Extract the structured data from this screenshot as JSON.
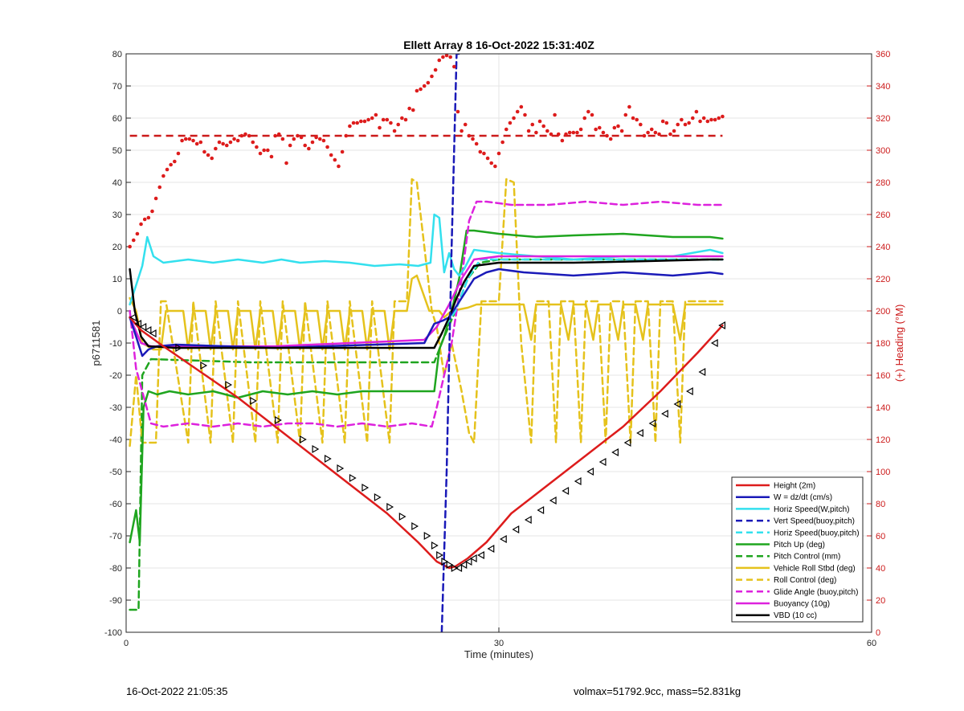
{
  "footer": {
    "timestamp": "16-Oct-2022 21:05:35",
    "volmax_mass": "volmax=51792.9cc, mass=52.831kg"
  },
  "chart_data": {
    "type": "line",
    "title": "Ellett Array 8 16-Oct-2022 15:31:40Z",
    "xlabel": "Time (minutes)",
    "ylabel": "p6711581",
    "y2label": "(+) Heading (°M)",
    "xlim": [
      0,
      60
    ],
    "ylim": [
      -100,
      80
    ],
    "y2lim": [
      0,
      360
    ],
    "xticks": [
      0,
      30,
      60
    ],
    "yticks": [
      -100,
      -90,
      -80,
      -70,
      -60,
      -50,
      -40,
      -30,
      -20,
      -10,
      0,
      10,
      20,
      30,
      40,
      50,
      60,
      70,
      80
    ],
    "y2ticks": [
      0,
      20,
      40,
      60,
      80,
      100,
      120,
      140,
      160,
      180,
      200,
      220,
      240,
      260,
      280,
      300,
      320,
      340,
      360
    ],
    "grid": true,
    "legend_position": "bottom-right",
    "y2_color": "#cc1a1a",
    "series": [
      {
        "name": "Height (2m)",
        "color": "#dd1c1c",
        "style": "solid",
        "width": 2.5,
        "x": [
          0.3,
          1.2,
          3,
          6,
          9,
          12,
          15,
          18,
          21,
          23.5,
          25,
          26,
          26.5,
          27.5,
          29,
          31,
          34,
          37,
          40,
          43,
          46,
          48
        ],
        "y": [
          -2,
          -6,
          -11,
          -19,
          -27,
          -36,
          -45,
          -54,
          -63,
          -72,
          -78,
          -80,
          -79.5,
          -77,
          -72,
          -63,
          -54,
          -45,
          -36,
          -25,
          -13,
          -4.5
        ]
      },
      {
        "name": "W = dz/dt (cm/s)",
        "color": "#1a1ab8",
        "style": "solid",
        "width": 2.5,
        "x": [
          0.3,
          0.8,
          1.3,
          1.8,
          2.5,
          4,
          8,
          12,
          16,
          20,
          24,
          24.8,
          25.5,
          26,
          27,
          28,
          29,
          30,
          32,
          36,
          40,
          44,
          47,
          48
        ],
        "y": [
          -2,
          -8,
          -14,
          -12,
          -11,
          -10.5,
          -11,
          -11.5,
          -11,
          -10.5,
          -10,
          -4,
          -3,
          -2,
          4,
          10,
          12,
          13,
          12,
          11,
          12,
          11,
          12,
          11.5
        ]
      },
      {
        "name": "Horiz Speed(W,pitch)",
        "color": "#33e0ee",
        "style": "solid",
        "width": 2.5,
        "x": [
          0.3,
          0.8,
          1.3,
          1.7,
          2.2,
          3,
          5,
          7,
          9,
          11,
          12.5,
          14,
          16,
          18,
          20,
          22,
          23.5,
          24.5,
          24.8,
          25.2,
          25.6,
          26,
          26.4,
          26.8,
          27.2,
          28,
          30,
          33,
          36,
          40,
          44,
          47,
          48
        ],
        "y": [
          2,
          8,
          14,
          23,
          17,
          15,
          16,
          15,
          16,
          15,
          16,
          15,
          15.5,
          15,
          14,
          14.5,
          14,
          15,
          30,
          29,
          12,
          18,
          13,
          11,
          13,
          19,
          18,
          17,
          16,
          17,
          17,
          19,
          18
        ]
      },
      {
        "name": "Vert Speed(buoy,pitch)",
        "color": "#1a1ab8",
        "style": "dashed",
        "width": 2.5,
        "x": [
          25.4,
          25.8,
          26.2,
          26.6,
          27.0
        ],
        "y": [
          -100,
          -50,
          20,
          80,
          80
        ]
      },
      {
        "name": "Horiz Speed(buoy,pitch)",
        "color": "#33e0ee",
        "style": "dashed",
        "width": 2.5,
        "x": [
          25.8,
          26.5,
          27.5,
          28.5,
          30,
          33,
          36,
          40,
          44,
          48
        ],
        "y": [
          -4,
          0,
          10,
          16,
          16,
          16,
          16,
          16,
          16,
          16
        ]
      },
      {
        "name": "Pitch Up (deg)",
        "color": "#1fa51f",
        "style": "solid",
        "width": 2.5,
        "x": [
          0.3,
          0.8,
          1.1,
          1.4,
          1.8,
          2.5,
          3.5,
          5,
          7,
          9,
          11,
          13,
          15,
          17,
          19,
          21,
          23,
          24.8,
          25.2,
          25.6,
          26.2,
          26.8,
          27.4,
          28,
          30,
          33,
          36,
          40,
          44,
          47,
          48
        ],
        "y": [
          -72,
          -62,
          -72,
          -30,
          -25,
          -26,
          -25,
          -26,
          -25,
          -27,
          -25,
          -26,
          -25,
          -26,
          -25,
          -25,
          -25,
          -25,
          -12,
          -8,
          0,
          10,
          25,
          25,
          24,
          23,
          23.5,
          24,
          23,
          23,
          22.5
        ]
      },
      {
        "name": "Pitch Control (mm)",
        "color": "#1fa51f",
        "style": "dashed",
        "width": 2.5,
        "x": [
          0.3,
          1.0,
          1.3,
          2.0,
          10,
          18,
          24.8,
          25.5,
          26.5,
          27.5,
          28.5,
          30,
          36,
          42,
          48
        ],
        "y": [
          -93,
          -93,
          -20,
          -15,
          -16,
          -16,
          -16,
          -9,
          0,
          10,
          15,
          16,
          16,
          16,
          16
        ]
      },
      {
        "name": "Vehicle Roll Stbd (deg)",
        "color": "#e5c21c",
        "style": "solid",
        "width": 2.5,
        "x": [
          0.3,
          0.8,
          1.3,
          2.2,
          2.8,
          3.2,
          3.6,
          4.6,
          5.0,
          5.4,
          6.4,
          6.8,
          7.2,
          8.2,
          8.6,
          9.0,
          10.0,
          10.4,
          10.8,
          11.8,
          12.2,
          12.6,
          13.6,
          14.0,
          14.4,
          15.4,
          15.8,
          16.2,
          17.2,
          17.6,
          18.0,
          19.0,
          19.4,
          19.8,
          20.8,
          21.2,
          21.6,
          22.6,
          23.0,
          23.4,
          24.4,
          24.8,
          25.2,
          25.6,
          26.2,
          27.5,
          28.2,
          29,
          31,
          32,
          32.6,
          33,
          35,
          35.6,
          36,
          37,
          37.6,
          38,
          39,
          39.6,
          40,
          41,
          41.6,
          42,
          43,
          44,
          44.6,
          45,
          47,
          48
        ],
        "y": [
          4,
          0,
          -10,
          -12,
          -12,
          0,
          0,
          0,
          -12,
          0,
          0,
          -12,
          0,
          0,
          -12,
          0,
          0,
          -12,
          0,
          0,
          -12,
          0,
          0,
          -12,
          0,
          0,
          -12,
          0,
          0,
          -12,
          0,
          0,
          -12,
          0,
          0,
          -12,
          0,
          0,
          10,
          11,
          0,
          0,
          0,
          -2,
          0,
          1,
          2,
          2,
          2,
          2,
          -9,
          2,
          2,
          -9,
          2,
          2,
          -9,
          2,
          2,
          -9,
          2,
          2,
          -9,
          2,
          2,
          2,
          -9,
          2,
          2,
          2
        ]
      },
      {
        "name": "Roll Control (deg)",
        "color": "#e5c21c",
        "style": "dashed",
        "width": 2.5,
        "x": [
          0.3,
          0.8,
          1.3,
          2.4,
          2.8,
          3.2,
          5.0,
          5.4,
          6.8,
          7.2,
          8.6,
          9.0,
          10.4,
          10.8,
          12.2,
          12.6,
          14.0,
          14.4,
          15.8,
          16.2,
          17.6,
          18.0,
          19.4,
          19.8,
          21.2,
          21.6,
          22.6,
          23.0,
          23.4,
          24.6,
          25.0,
          25.6,
          26.2,
          27.0,
          27.6,
          28.0,
          28.6,
          30,
          30.6,
          31.2,
          31.8,
          32.6,
          33,
          34,
          34.6,
          35,
          36,
          36.6,
          37,
          38,
          38.6,
          39,
          40,
          40.6,
          41,
          42,
          42.6,
          43,
          44,
          44.6,
          45,
          46,
          47,
          48
        ],
        "y": [
          -42,
          -20,
          -41,
          -41,
          3,
          3,
          -41,
          3,
          -41,
          3,
          -41,
          3,
          -41,
          3,
          -41,
          3,
          -41,
          3,
          -41,
          3,
          -41,
          3,
          -41,
          3,
          -41,
          3,
          3,
          41,
          40,
          0,
          -5,
          -20,
          -10,
          -25,
          -38,
          -41,
          3,
          3,
          41,
          40,
          -10,
          -41,
          3,
          3,
          -41,
          3,
          3,
          -41,
          3,
          3,
          -41,
          3,
          3,
          -41,
          3,
          3,
          -41,
          3,
          3,
          -41,
          3,
          3,
          3,
          3
        ]
      },
      {
        "name": "Glide Angle (buoy,pitch)",
        "color": "#dd22dd",
        "style": "dashed",
        "width": 2.5,
        "x": [
          0.3,
          0.8,
          2,
          3,
          5,
          7,
          9,
          11,
          13,
          15,
          17,
          19,
          21,
          23,
          24.6,
          25,
          25.6,
          26.2,
          27,
          27.6,
          28.2,
          29,
          31,
          34,
          37,
          40,
          43,
          46,
          48
        ],
        "y": [
          0,
          -18,
          -35,
          -36,
          -35,
          -36,
          -35,
          -36,
          -35,
          -35,
          -36,
          -35,
          -36,
          -35,
          -36,
          -30,
          -20,
          -10,
          10,
          28,
          34,
          34,
          33,
          33,
          34,
          33,
          34,
          33,
          33
        ]
      },
      {
        "name": "Buoyancy (10g)",
        "color": "#dd22dd",
        "style": "solid",
        "width": 2.5,
        "x": [
          0.3,
          1.2,
          2,
          6,
          12,
          18,
          24,
          25,
          26,
          27,
          28,
          30,
          36,
          42,
          48
        ],
        "y": [
          -2,
          -10,
          -11,
          -11,
          -11,
          -10,
          -9,
          -5,
          2,
          10,
          16,
          17,
          17,
          17,
          17
        ]
      },
      {
        "name": "VBD (10 cc)",
        "color": "#000000",
        "style": "solid",
        "width": 2.5,
        "x": [
          0.3,
          0.7,
          1.2,
          1.8,
          4,
          10,
          16,
          22,
          24.8,
          25.4,
          26,
          26.6,
          27.2,
          28,
          30,
          36,
          42,
          47,
          48
        ],
        "y": [
          13,
          0,
          -8,
          -11,
          -11.5,
          -11.5,
          -11.5,
          -11.5,
          -11.5,
          -7,
          -2,
          4,
          9,
          14,
          15,
          15,
          15.5,
          16,
          16
        ]
      }
    ],
    "heading_reference": {
      "value": 309,
      "color": "#cc1a1a",
      "style": "dashed"
    },
    "heading_points": {
      "color": "#dd1c1c",
      "x": [
        0.3,
        0.6,
        0.9,
        1.2,
        1.5,
        1.8,
        2.1,
        2.4,
        2.7,
        3.0,
        3.3,
        3.6,
        3.9,
        4.2,
        4.5,
        4.8,
        5.1,
        5.4,
        5.7,
        6.0,
        6.3,
        6.6,
        6.9,
        7.2,
        7.5,
        7.8,
        8.1,
        8.4,
        8.7,
        9.0,
        9.3,
        9.6,
        9.9,
        10.2,
        10.5,
        10.8,
        11.1,
        11.4,
        11.7,
        12.0,
        12.3,
        12.6,
        12.9,
        13.2,
        13.5,
        13.8,
        14.1,
        14.4,
        14.7,
        15.0,
        15.3,
        15.6,
        15.9,
        16.2,
        16.5,
        16.8,
        17.1,
        17.4,
        17.7,
        18.0,
        18.3,
        18.6,
        18.9,
        19.2,
        19.5,
        19.8,
        20.1,
        20.4,
        20.7,
        21.0,
        21.3,
        21.6,
        21.9,
        22.2,
        22.5,
        22.8,
        23.1,
        23.4,
        23.7,
        24.0,
        24.3,
        24.6,
        24.9,
        25.2,
        25.5,
        25.8,
        26.1,
        26.4,
        26.7,
        27.0,
        27.3,
        27.6,
        27.9,
        28.2,
        28.5,
        28.8,
        29.1,
        29.4,
        29.7,
        30.0,
        30.3,
        30.6,
        30.9,
        31.2,
        31.5,
        31.8,
        32.1,
        32.4,
        32.7,
        33.0,
        33.3,
        33.6,
        33.9,
        34.2,
        34.5,
        34.8,
        35.1,
        35.4,
        35.7,
        36.0,
        36.3,
        36.6,
        36.9,
        37.2,
        37.5,
        37.8,
        38.1,
        38.4,
        38.7,
        39.0,
        39.3,
        39.6,
        39.9,
        40.2,
        40.5,
        40.8,
        41.1,
        41.4,
        41.7,
        42.0,
        42.3,
        42.6,
        42.9,
        43.2,
        43.5,
        43.8,
        44.1,
        44.4,
        44.7,
        45.0,
        45.3,
        45.6,
        45.9,
        46.2,
        46.5,
        46.8,
        47.1,
        47.4,
        47.7,
        48.0
      ],
      "y": [
        240,
        244,
        248,
        254,
        257,
        258,
        262,
        270,
        277,
        284,
        288,
        291,
        293,
        298,
        306,
        307,
        307,
        306,
        304,
        305,
        299,
        297,
        295,
        301,
        305,
        304,
        303,
        305,
        307,
        306,
        309,
        310,
        309,
        305,
        302,
        298,
        300,
        300,
        296,
        309,
        310,
        307,
        292,
        303,
        307,
        309,
        308,
        303,
        301,
        305,
        308,
        307,
        306,
        302,
        297,
        294,
        290,
        299,
        309,
        315,
        317,
        317,
        318,
        318,
        319,
        320,
        322,
        314,
        319,
        319,
        317,
        312,
        316,
        320,
        319,
        326,
        325,
        337,
        338,
        340,
        342,
        346,
        350,
        356,
        358,
        359,
        358,
        352,
        324,
        312,
        316,
        309,
        307,
        304,
        299,
        298,
        295,
        292,
        290,
        298,
        305,
        313,
        317,
        320,
        324,
        327,
        322,
        312,
        316,
        311,
        318,
        315,
        312,
        310,
        322,
        310,
        306,
        310,
        311,
        311,
        311,
        313,
        320,
        324,
        322,
        313,
        314,
        311,
        309,
        307,
        314,
        315,
        312,
        322,
        327,
        320,
        319,
        316,
        309,
        311,
        313,
        311,
        310,
        318,
        317,
        310,
        312,
        316,
        319,
        316,
        317,
        320,
        324,
        318,
        320,
        318,
        319,
        319,
        320,
        321
      ]
    },
    "height_markers": {
      "color": "#000000",
      "x": [
        0.6,
        1.0,
        1.4,
        1.8,
        2.2,
        4.2,
        6.2,
        8.2,
        10.2,
        12.2,
        14.2,
        15.2,
        16.2,
        17.2,
        18.2,
        19.2,
        20.2,
        21.2,
        22.2,
        23.2,
        24.2,
        24.8,
        25.2,
        25.6,
        26.0,
        26.4,
        26.8,
        27.2,
        27.6,
        28.0,
        28.6,
        29.4,
        30.4,
        31.4,
        32.4,
        33.4,
        34.4,
        35.4,
        36.4,
        37.4,
        38.4,
        39.4,
        40.4,
        41.4,
        42.4,
        43.4,
        44.4,
        45.4,
        46.4,
        47.4,
        48.0
      ],
      "y": [
        -2,
        -4,
        -5,
        -6,
        -7,
        -11.5,
        -17,
        -23,
        -28,
        -34,
        -40,
        -43,
        -46,
        -49,
        -52,
        -55,
        -58,
        -61,
        -64,
        -67,
        -70,
        -73,
        -76,
        -78,
        -79,
        -80,
        -80,
        -79,
        -78,
        -77,
        -76,
        -74,
        -71,
        -68,
        -65,
        -62,
        -59,
        -56,
        -53,
        -50,
        -47,
        -44,
        -41,
        -38,
        -35,
        -32,
        -29,
        -25,
        -19,
        -10,
        -4.5
      ]
    }
  }
}
